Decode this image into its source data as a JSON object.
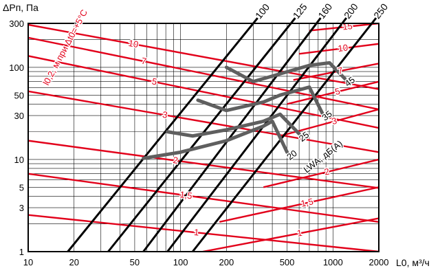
{
  "chart_data": {
    "type": "line",
    "y_title": "ΔPп, Па",
    "x_title": "L0, м³/ч",
    "x_scale": "log",
    "y_scale": "log",
    "xlim": [
      10,
      2000
    ],
    "ylim": [
      1,
      300
    ],
    "x_ticks": [
      "10",
      "20",
      "50",
      "100",
      "200",
      "500",
      "1000",
      "2000"
    ],
    "x_tick_values": [
      10,
      20,
      50,
      100,
      200,
      500,
      1000,
      2000
    ],
    "y_ticks": [
      "1",
      "3",
      "5",
      "10",
      "30",
      "50",
      "100",
      "300"
    ],
    "y_tick_values": [
      1,
      3,
      5,
      10,
      30,
      50,
      100,
      300
    ],
    "grid": true,
    "colors": {
      "diameter": "#000000",
      "throw": "#e2001a",
      "noise": "#5f5f5f",
      "grid": "#000000"
    },
    "diameter_lines": [
      {
        "label": "100",
        "p1": [
          18.2,
          1
        ],
        "p2": [
          300,
          300
        ]
      },
      {
        "label": "125",
        "p1": [
          33.5,
          1
        ],
        "p2": [
          530,
          300
        ]
      },
      {
        "label": "160",
        "p1": [
          57,
          1
        ],
        "p2": [
          780,
          300
        ]
      },
      {
        "label": "200",
        "p1": [
          82,
          1
        ],
        "p2": [
          1150,
          300
        ]
      },
      {
        "label": "250",
        "p1": [
          120,
          1
        ],
        "p2": [
          1800,
          300
        ]
      }
    ],
    "throw_legend": "l0,2, м при Δt0=+5°C",
    "throw_lines": [
      {
        "label": "10",
        "points": [
          [
            10,
            290
          ],
          [
            2000,
            58
          ]
        ]
      },
      {
        "label": "7",
        "points": [
          [
            10,
            210
          ],
          [
            2000,
            35
          ]
        ]
      },
      {
        "label": "5",
        "points": [
          [
            10,
            133
          ],
          [
            2000,
            22
          ]
        ]
      },
      {
        "label": "3",
        "points": [
          [
            10,
            55
          ],
          [
            2000,
            12
          ]
        ]
      },
      {
        "label": "2",
        "points": [
          [
            10,
            16
          ],
          [
            2000,
            4.9
          ]
        ]
      },
      {
        "label": "1,5",
        "points": [
          [
            10,
            7
          ],
          [
            2000,
            2.1
          ]
        ]
      },
      {
        "label": "1",
        "points": [
          [
            10,
            2.5
          ],
          [
            2000,
            1
          ]
        ]
      },
      {
        "label": "15",
        "points": [
          [
            700,
            250
          ],
          [
            2000,
            300
          ]
        ]
      },
      {
        "label": "10",
        "points": [
          [
            600,
            140
          ],
          [
            2000,
            180
          ]
        ]
      },
      {
        "label": "7",
        "points": [
          [
            550,
            73
          ],
          [
            2000,
            110
          ]
        ]
      },
      {
        "label": "5",
        "points": [
          [
            500,
            40
          ],
          [
            2000,
            70
          ]
        ]
      },
      {
        "label": "3",
        "points": [
          [
            450,
            18
          ],
          [
            2000,
            35
          ]
        ]
      },
      {
        "label": "2",
        "points": [
          [
            350,
            5
          ],
          [
            2000,
            10
          ]
        ]
      },
      {
        "label": "1,5",
        "points": [
          [
            180,
            2.1
          ],
          [
            2000,
            5
          ]
        ]
      },
      {
        "label": "1",
        "points": [
          [
            140,
            1
          ],
          [
            2000,
            2.3
          ]
        ]
      }
    ],
    "noise_legend": "LWA, дБ(А)",
    "noise_curves": [
      {
        "label": "20",
        "points": [
          [
            57,
            10.3
          ],
          [
            100,
            12
          ],
          [
            200,
            16
          ],
          [
            350,
            23
          ],
          [
            400,
            26
          ],
          [
            500,
            12
          ]
        ]
      },
      {
        "label": "25",
        "points": [
          [
            82,
            20
          ],
          [
            120,
            18
          ],
          [
            200,
            21
          ],
          [
            350,
            26
          ],
          [
            450,
            31
          ],
          [
            600,
            19
          ]
        ]
      },
      {
        "label": "35",
        "points": [
          [
            130,
            44
          ],
          [
            200,
            34
          ],
          [
            350,
            42
          ],
          [
            450,
            50
          ],
          [
            700,
            61
          ],
          [
            850,
            32
          ]
        ]
      },
      {
        "label": "45",
        "points": [
          [
            200,
            100
          ],
          [
            300,
            70
          ],
          [
            450,
            85
          ],
          [
            700,
            105
          ],
          [
            950,
            112
          ],
          [
            1200,
            75
          ]
        ]
      }
    ]
  }
}
